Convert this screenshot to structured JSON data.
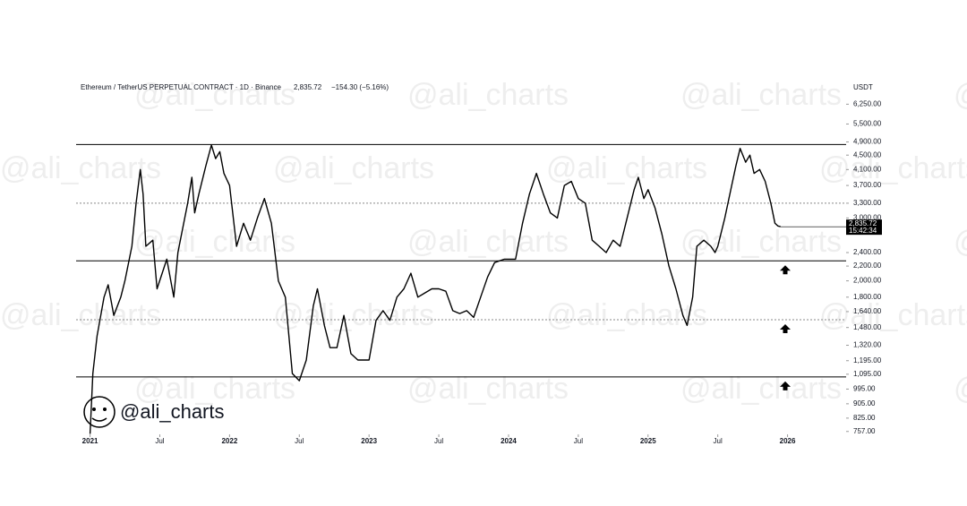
{
  "chart_data": {
    "type": "line",
    "title": "Ethereum / TetherUS PERPETUAL CONTRACT · 1D · Binance",
    "last_price": "2,835.72",
    "change": "−154.30 (−5.16%)",
    "unit": "USDT",
    "time_label": "15:42:34",
    "watermark": "@ali_charts",
    "log_scale": true,
    "xlim": [
      2020.9,
      2026.42
    ],
    "ylim": [
      743,
      7070
    ],
    "xticks": [
      {
        "value": 2021,
        "label": "2021"
      },
      {
        "value": 2021.5,
        "label": "Jul"
      },
      {
        "value": 2022,
        "label": "2022"
      },
      {
        "value": 2022.5,
        "label": "Jul"
      },
      {
        "value": 2023,
        "label": "2023"
      },
      {
        "value": 2023.5,
        "label": "Jul"
      },
      {
        "value": 2024,
        "label": "2024"
      },
      {
        "value": 2024.5,
        "label": "Jul"
      },
      {
        "value": 2025,
        "label": "2025"
      },
      {
        "value": 2025.5,
        "label": "Jul"
      },
      {
        "value": 2026,
        "label": "2026"
      }
    ],
    "yticks": [
      {
        "value": 757,
        "label": "757.00"
      },
      {
        "value": 825,
        "label": "825.00"
      },
      {
        "value": 905,
        "label": "905.00"
      },
      {
        "value": 995,
        "label": "995.00"
      },
      {
        "value": 1095,
        "label": "1,095.00"
      },
      {
        "value": 1195,
        "label": "1,195.00"
      },
      {
        "value": 1320,
        "label": "1,320.00"
      },
      {
        "value": 1480,
        "label": "1,480.00"
      },
      {
        "value": 1640,
        "label": "1,640.00"
      },
      {
        "value": 1800,
        "label": "1,800.00"
      },
      {
        "value": 2000,
        "label": "2,000.00"
      },
      {
        "value": 2200,
        "label": "2,200.00"
      },
      {
        "value": 2400,
        "label": "2,400.00"
      },
      {
        "value": 3000,
        "label": "3,000.00"
      },
      {
        "value": 3300,
        "label": "3,300.00"
      },
      {
        "value": 3700,
        "label": "3,700.00"
      },
      {
        "value": 4100,
        "label": "4,100.00"
      },
      {
        "value": 4500,
        "label": "4,500.00"
      },
      {
        "value": 4900,
        "label": "4,900.00"
      },
      {
        "value": 5500,
        "label": "5,500.00"
      },
      {
        "value": 6250,
        "label": "6,250.00"
      }
    ],
    "levels": [
      {
        "value": 4820,
        "style": "solid"
      },
      {
        "value": 3300,
        "style": "dotted"
      },
      {
        "value": 2275,
        "style": "solid",
        "arrow": true
      },
      {
        "value": 1556,
        "style": "dotted",
        "arrow": true
      },
      {
        "value": 1076,
        "style": "solid",
        "arrow": true
      }
    ],
    "series": [
      {
        "name": "ETHUSDT",
        "color": "#000000",
        "x": [
          2021.0,
          2021.02,
          2021.05,
          2021.1,
          2021.13,
          2021.17,
          2021.22,
          2021.25,
          2021.3,
          2021.33,
          2021.36,
          2021.38,
          2021.4,
          2021.45,
          2021.48,
          2021.55,
          2021.6,
          2021.63,
          2021.7,
          2021.73,
          2021.75,
          2021.78,
          2021.83,
          2021.87,
          2021.9,
          2021.93,
          2021.96,
          2022.0,
          2022.05,
          2022.1,
          2022.15,
          2022.2,
          2022.25,
          2022.3,
          2022.35,
          2022.4,
          2022.45,
          2022.5,
          2022.55,
          2022.6,
          2022.63,
          2022.68,
          2022.72,
          2022.77,
          2022.82,
          2022.87,
          2022.92,
          2022.97,
          2023.0,
          2023.05,
          2023.1,
          2023.15,
          2023.2,
          2023.25,
          2023.3,
          2023.35,
          2023.4,
          2023.45,
          2023.5,
          2023.55,
          2023.6,
          2023.65,
          2023.7,
          2023.75,
          2023.8,
          2023.85,
          2023.9,
          2023.97,
          2024.0,
          2024.05,
          2024.1,
          2024.15,
          2024.2,
          2024.25,
          2024.3,
          2024.35,
          2024.4,
          2024.45,
          2024.5,
          2024.55,
          2024.6,
          2024.65,
          2024.7,
          2024.75,
          2024.8,
          2024.85,
          2024.9,
          2024.93,
          2024.97,
          2025.0,
          2025.05,
          2025.1,
          2025.15,
          2025.2,
          2025.25,
          2025.28,
          2025.32,
          2025.35,
          2025.4,
          2025.45,
          2025.48,
          2025.5,
          2025.55,
          2025.6,
          2025.63,
          2025.66,
          2025.7,
          2025.73,
          2025.76,
          2025.8,
          2025.84,
          2025.88,
          2025.91,
          2025.93,
          2025.95
        ],
        "values": [
          745,
          1100,
          1400,
          1800,
          1950,
          1600,
          1800,
          2000,
          2500,
          3300,
          4100,
          3500,
          2500,
          2600,
          1900,
          2300,
          1800,
          2400,
          3300,
          3900,
          3100,
          3500,
          4200,
          4800,
          4400,
          4600,
          4000,
          3700,
          2500,
          2900,
          2600,
          3000,
          3400,
          2900,
          2000,
          1800,
          1100,
          1050,
          1200,
          1700,
          1900,
          1500,
          1300,
          1300,
          1600,
          1250,
          1200,
          1200,
          1200,
          1550,
          1650,
          1550,
          1800,
          1900,
          2100,
          1800,
          1850,
          1900,
          1900,
          1870,
          1650,
          1620,
          1650,
          1580,
          1800,
          2050,
          2250,
          2300,
          2300,
          2300,
          2900,
          3500,
          4000,
          3500,
          3100,
          3000,
          3700,
          3800,
          3400,
          3300,
          2600,
          2500,
          2400,
          2600,
          2500,
          3000,
          3600,
          3900,
          3400,
          3600,
          3200,
          2700,
          2200,
          1900,
          1600,
          1500,
          1800,
          2500,
          2600,
          2500,
          2400,
          2500,
          3000,
          3700,
          4200,
          4700,
          4300,
          4500,
          4000,
          4100,
          3800,
          3300,
          2900,
          2850,
          2835.72
        ]
      }
    ]
  }
}
